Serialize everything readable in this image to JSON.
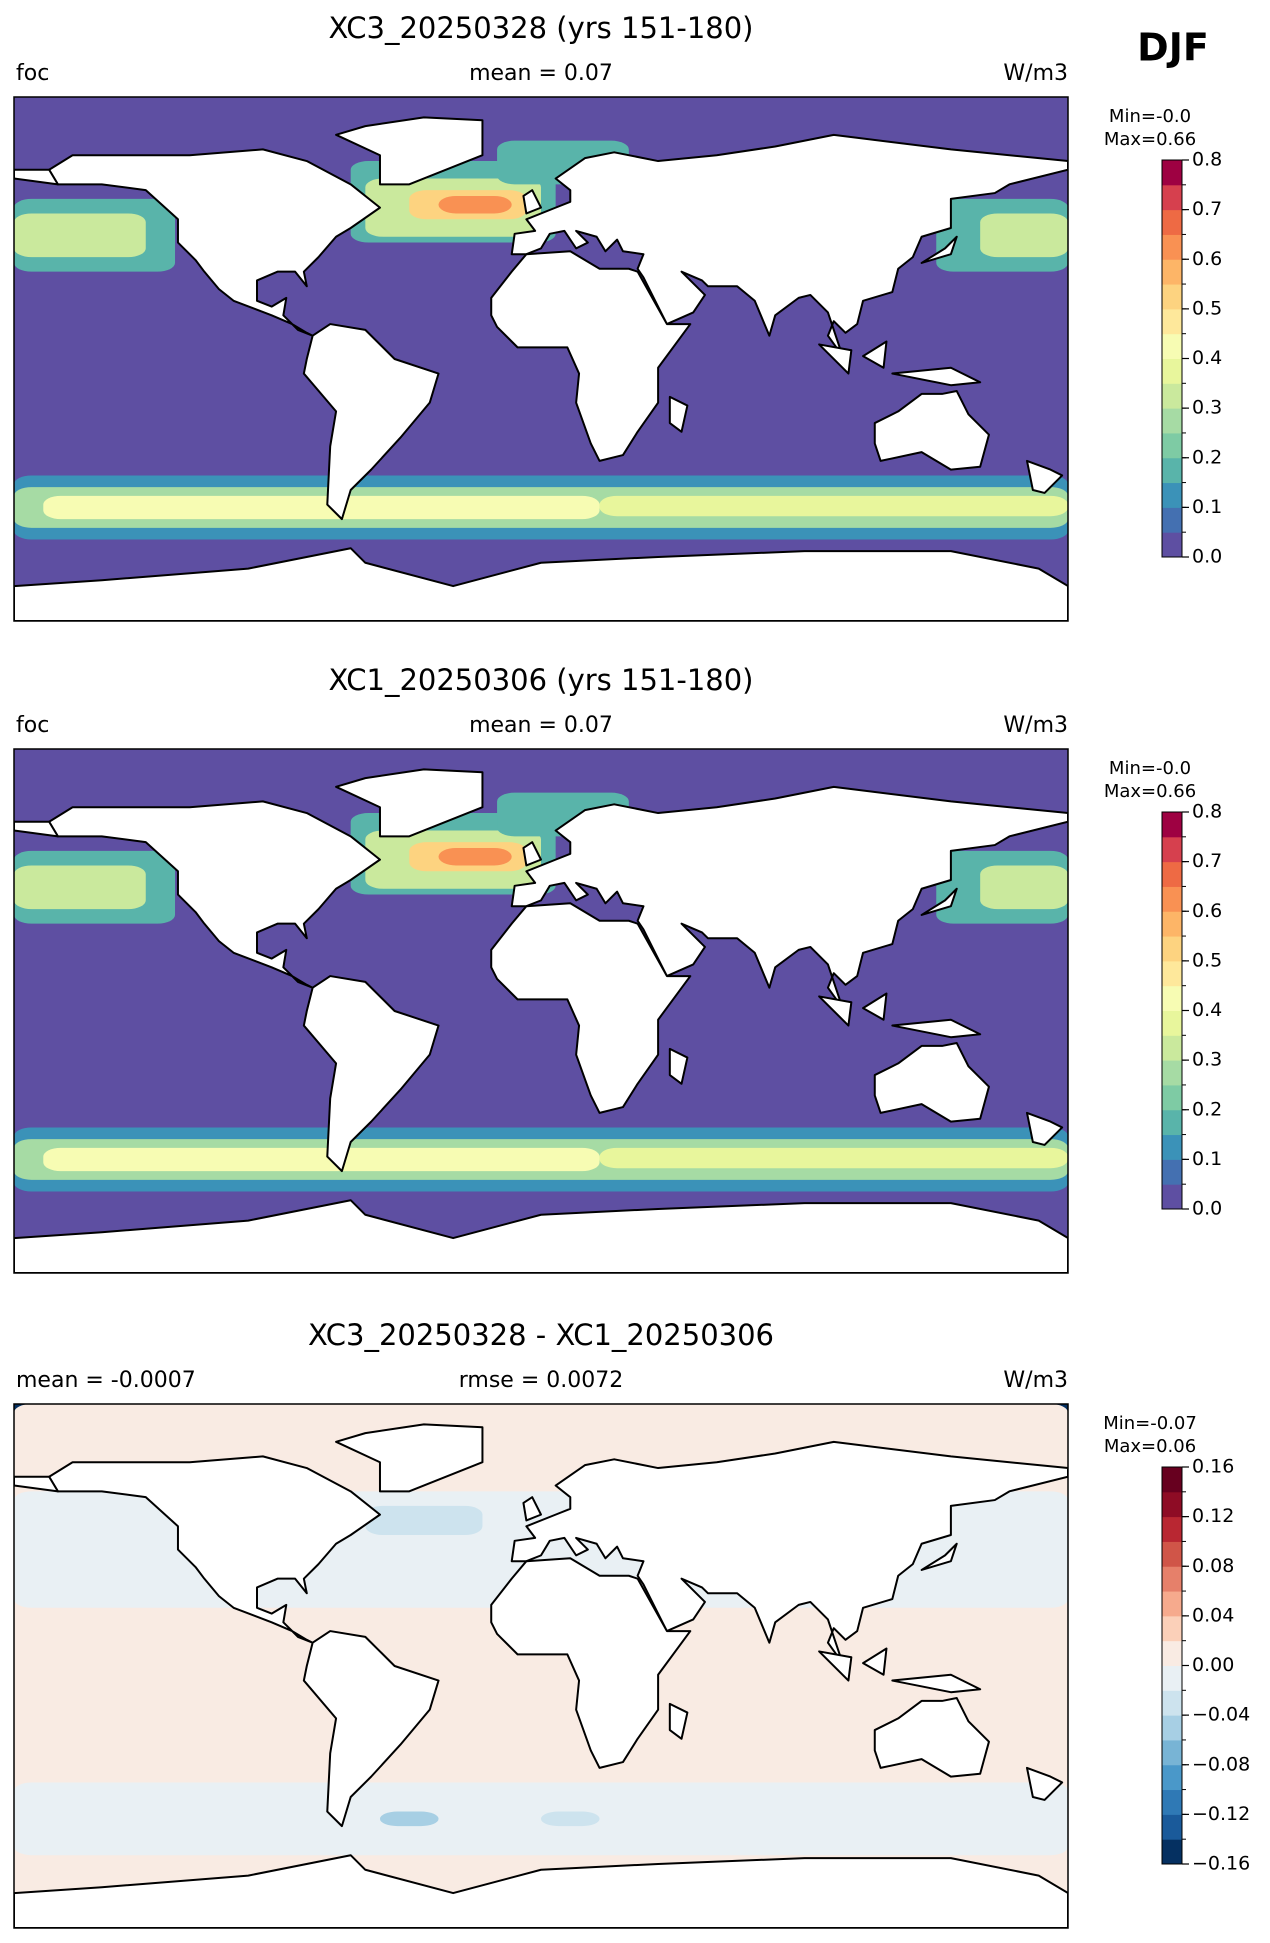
{
  "season": "DJF",
  "chart_data": [
    {
      "type": "map",
      "title": "XC3_20250328 (yrs 151-180)",
      "left_label": "foc",
      "center_label": "mean = 0.07",
      "right_label": "W/m3",
      "min_label": "Min=-0.0",
      "max_label": "Max=0.66",
      "ylim": [
        0,
        0.8
      ],
      "yticks": [
        {
          "value": 0,
          "label": "0.0"
        },
        0.1,
        0.2,
        0.3,
        0.4,
        0.5,
        0.6,
        0.7,
        0.8
      ],
      "colors": [
        "#5e4fa2",
        "#4470b1",
        "#3b92b8",
        "#59b4aa",
        "#7ecba4",
        "#a6dba4",
        "#cae99d",
        "#e8f69c",
        "#f7fcb3",
        "#fee89b",
        "#fdd380",
        "#fdb567",
        "#f99153",
        "#ee6a44",
        "#d6404e",
        "#9e0142"
      ]
    },
    {
      "type": "map",
      "title": "XC1_20250306 (yrs 151-180)",
      "left_label": "foc",
      "center_label": "mean = 0.07",
      "right_label": "W/m3",
      "min_label": "Min=-0.0",
      "max_label": "Max=0.66",
      "ylim": [
        0,
        0.8
      ],
      "yticks": [
        {
          "value": 0,
          "label": "0.0"
        },
        0.1,
        0.2,
        0.3,
        0.4,
        0.5,
        0.6,
        0.7,
        0.8
      ],
      "colors": [
        "#5e4fa2",
        "#4470b1",
        "#3b92b8",
        "#59b4aa",
        "#7ecba4",
        "#a6dba4",
        "#cae99d",
        "#e8f69c",
        "#f7fcb3",
        "#fee89b",
        "#fdd380",
        "#fdb567",
        "#f99153",
        "#ee6a44",
        "#d6404e",
        "#9e0142"
      ]
    },
    {
      "type": "map",
      "title": "XC3_20250328 - XC1_20250306",
      "left_label": "mean = -0.0007",
      "center_label": "rmse = 0.0072",
      "right_label": "W/m3",
      "min_label": "Min=-0.07",
      "max_label": "Max=0.06",
      "ylim": [
        -0.16,
        0.16
      ],
      "yticks": [
        {
          "value": -0.16,
          "label": "−0.16"
        },
        {
          "value": -0.12,
          "label": "−0.12"
        },
        {
          "value": -0.08,
          "label": "−0.08"
        },
        {
          "value": -0.04,
          "label": "−0.04"
        },
        {
          "value": 0,
          "label": "0.00"
        },
        0.04,
        0.08,
        0.12,
        0.16
      ],
      "colors": [
        "#053061",
        "#1a5a9a",
        "#2f79b5",
        "#4a98c9",
        "#78b4d5",
        "#a7cfe4",
        "#cde3ee",
        "#e9f0f4",
        "#f9ebe3",
        "#fbd0b9",
        "#f6aa8d",
        "#e6806a",
        "#d05548",
        "#b92732",
        "#8e0c25",
        "#67001f"
      ]
    }
  ]
}
